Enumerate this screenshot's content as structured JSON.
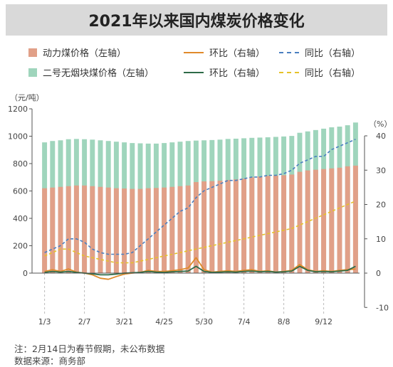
{
  "title": "2021年以来国内煤炭价格变化",
  "legend": {
    "bar1": "动力煤价格（左轴）",
    "bar2": "二号无烟块煤价格（左轴）",
    "line_orange": "环比（右轴）",
    "line_blue": "同比（右轴）",
    "line_green": "环比（右轴）",
    "line_yellow": "同比（右轴）"
  },
  "colors": {
    "thermal_coal": "#e1a088",
    "anthracite": "#9fd5bc",
    "orange": "#e08a2a",
    "blue": "#4a7fc0",
    "green": "#2e6b48",
    "yellow": "#e6c229"
  },
  "left_unit": "（元/吨）",
  "right_unit": "（%）",
  "footnotes": {
    "note": "注：2月14日为春节假期，未公布数据",
    "source": "数据来源：商务部"
  },
  "chart_data": {
    "type": "bar",
    "x_tick_labels": [
      "1/3",
      "2/7",
      "3/21",
      "4/25",
      "5/30",
      "7/4",
      "8/8",
      "9/12"
    ],
    "y_left": {
      "range": [
        0,
        1200
      ],
      "ticks": [
        0,
        200,
        400,
        600,
        800,
        1000,
        1200
      ]
    },
    "y_right": {
      "range": [
        -10,
        40
      ],
      "ticks": [
        -10,
        0,
        10,
        20,
        30,
        40
      ]
    },
    "series": [
      {
        "name": "动力煤价格（左轴）",
        "axis": "left",
        "type": "bar",
        "values": [
          620,
          625,
          630,
          635,
          640,
          640,
          635,
          630,
          625,
          620,
          618,
          615,
          615,
          620,
          622,
          625,
          630,
          635,
          640,
          665,
          670,
          672,
          675,
          680,
          685,
          690,
          700,
          705,
          710,
          712,
          715,
          720,
          740,
          750,
          755,
          760,
          765,
          770,
          780,
          785
        ]
      },
      {
        "name": "二号无烟块煤价格（左轴）",
        "axis": "left",
        "type": "bar",
        "values": [
          955,
          965,
          970,
          978,
          980,
          978,
          975,
          970,
          965,
          960,
          955,
          950,
          948,
          946,
          946,
          950,
          955,
          960,
          965,
          968,
          970,
          972,
          975,
          980,
          982,
          985,
          988,
          990,
          992,
          995,
          998,
          1002,
          1025,
          1035,
          1045,
          1055,
          1065,
          1070,
          1080,
          1100
        ]
      },
      {
        "name": "环比（右轴）",
        "axis": "right",
        "type": "line",
        "color": "orange",
        "values": [
          0.5,
          1.0,
          0.5,
          1.2,
          0.3,
          0.0,
          -0.5,
          -1.5,
          -1.8,
          -1.0,
          -0.3,
          0.0,
          0.2,
          0.8,
          0.5,
          0.5,
          0.7,
          1.0,
          1.5,
          4.5,
          1.0,
          0.3,
          0.5,
          0.7,
          0.5,
          0.8,
          1.0,
          0.5,
          0.7,
          0.3,
          0.5,
          0.8,
          2.5,
          1.0,
          0.5,
          0.7,
          0.5,
          0.8,
          1.0,
          1.2
        ]
      },
      {
        "name": "同比（右轴）",
        "axis": "right",
        "type": "line",
        "color": "blue",
        "values": [
          6,
          7,
          8,
          10,
          10,
          9,
          7,
          6,
          5.5,
          5.5,
          5.5,
          6,
          8,
          10,
          12,
          14,
          16,
          18,
          19,
          22,
          24,
          25,
          26,
          27,
          27,
          27.5,
          28,
          28,
          28.5,
          28.5,
          29,
          30,
          32,
          33,
          34,
          34,
          36,
          37,
          38,
          39
        ]
      },
      {
        "name": "环比（右轴）",
        "axis": "right",
        "type": "line",
        "color": "green",
        "values": [
          0.2,
          0.5,
          0.3,
          0.5,
          0.2,
          0.0,
          -0.2,
          -0.5,
          -0.5,
          -0.3,
          0.0,
          0.1,
          0.2,
          0.5,
          0.3,
          0.2,
          0.4,
          0.5,
          0.6,
          2.0,
          0.5,
          0.2,
          0.3,
          0.4,
          0.3,
          0.5,
          0.6,
          0.4,
          0.5,
          0.3,
          0.4,
          0.6,
          2.0,
          0.8,
          0.4,
          0.5,
          0.4,
          0.6,
          0.8,
          2.0
        ]
      },
      {
        "name": "同比（右轴）",
        "axis": "right",
        "type": "line",
        "color": "yellow",
        "values": [
          5,
          6,
          7,
          7,
          6,
          5,
          4.5,
          4,
          3.5,
          3,
          3,
          3,
          3.5,
          4,
          4.5,
          5,
          5.5,
          6,
          6.5,
          7,
          7.5,
          8,
          8.5,
          9,
          9.5,
          10,
          10.5,
          11,
          11.5,
          12,
          12.5,
          13,
          14,
          15,
          16,
          17,
          18,
          19,
          20,
          21
        ]
      }
    ]
  }
}
